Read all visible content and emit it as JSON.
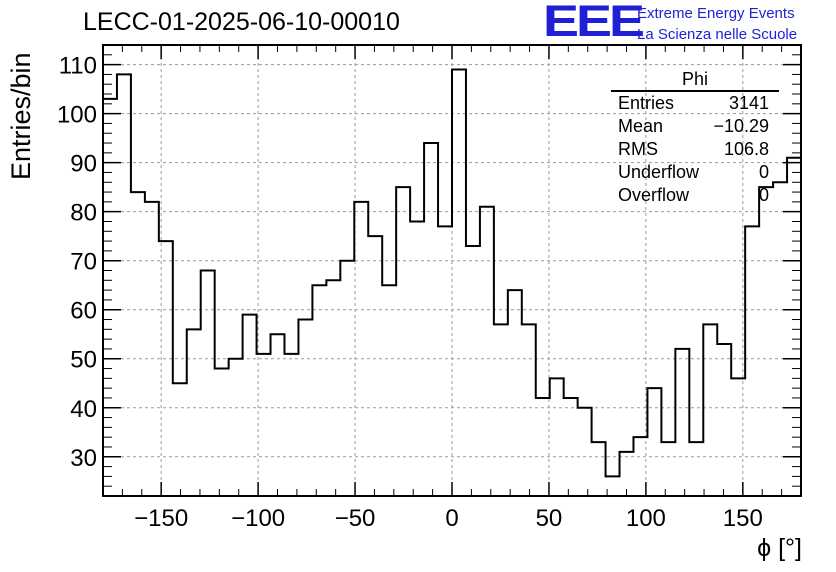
{
  "title": "LECC-01-2025-06-10-00010",
  "logo": {
    "letters": "EEE",
    "line1": "Extreme Energy Events",
    "line2": "La Scienza nelle Scuole",
    "color": "#1f1fd6"
  },
  "stats": {
    "name": "Phi",
    "rows": [
      {
        "label": "Entries",
        "value": "3141"
      },
      {
        "label": "Mean",
        "value": "−10.29"
      },
      {
        "label": "RMS",
        "value": "106.8"
      },
      {
        "label": "Underflow",
        "value": "0"
      },
      {
        "label": "Overflow",
        "value": "0"
      }
    ]
  },
  "chart_data": {
    "type": "bar",
    "style": "step-histogram",
    "title": "LECC-01-2025-06-10-00010",
    "xlabel": "ϕ [°]",
    "ylabel": "Entries/bin",
    "xlim": [
      -180,
      180
    ],
    "ylim": [
      22,
      114
    ],
    "xticks": [
      -150,
      -100,
      -50,
      0,
      50,
      100,
      150
    ],
    "xtick_labels": [
      "−150",
      "−100",
      "−50",
      "0",
      "50",
      "100",
      "150"
    ],
    "yticks": [
      30,
      40,
      50,
      60,
      70,
      80,
      90,
      100,
      110
    ],
    "grid": true,
    "bin_width": 7.2,
    "bin_edges_start": -180,
    "values": [
      103,
      108,
      84,
      82,
      74,
      45,
      56,
      68,
      48,
      50,
      59,
      51,
      55,
      51,
      58,
      65,
      66,
      70,
      82,
      75,
      65,
      85,
      78,
      94,
      77,
      109,
      73,
      81,
      57,
      64,
      57,
      42,
      46,
      42,
      40,
      33,
      26,
      31,
      34,
      44,
      33,
      52,
      33,
      57,
      53,
      46,
      77,
      85,
      86,
      91
    ]
  }
}
